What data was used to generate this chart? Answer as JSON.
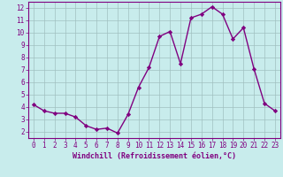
{
  "x": [
    0,
    1,
    2,
    3,
    4,
    5,
    6,
    7,
    8,
    9,
    10,
    11,
    12,
    13,
    14,
    15,
    16,
    17,
    18,
    19,
    20,
    21,
    22,
    23
  ],
  "y": [
    4.2,
    3.7,
    3.5,
    3.5,
    3.2,
    2.5,
    2.2,
    2.3,
    1.9,
    3.4,
    5.6,
    7.2,
    9.7,
    10.1,
    7.5,
    11.2,
    11.5,
    12.1,
    11.5,
    9.5,
    10.4,
    7.1,
    4.3,
    3.7
  ],
  "line_color": "#800080",
  "marker": "D",
  "marker_size": 2.2,
  "line_width": 1.0,
  "xlabel": "Windchill (Refroidissement éolien,°C)",
  "xlim": [
    -0.5,
    23.5
  ],
  "ylim": [
    1.5,
    12.5
  ],
  "yticks": [
    2,
    3,
    4,
    5,
    6,
    7,
    8,
    9,
    10,
    11,
    12
  ],
  "xticks": [
    0,
    1,
    2,
    3,
    4,
    5,
    6,
    7,
    8,
    9,
    10,
    11,
    12,
    13,
    14,
    15,
    16,
    17,
    18,
    19,
    20,
    21,
    22,
    23
  ],
  "bg_color": "#c8ecec",
  "grid_color": "#a0c0c0",
  "tick_color": "#800080",
  "label_color": "#800080",
  "tick_fontsize": 5.5,
  "xlabel_fontsize": 6.0
}
